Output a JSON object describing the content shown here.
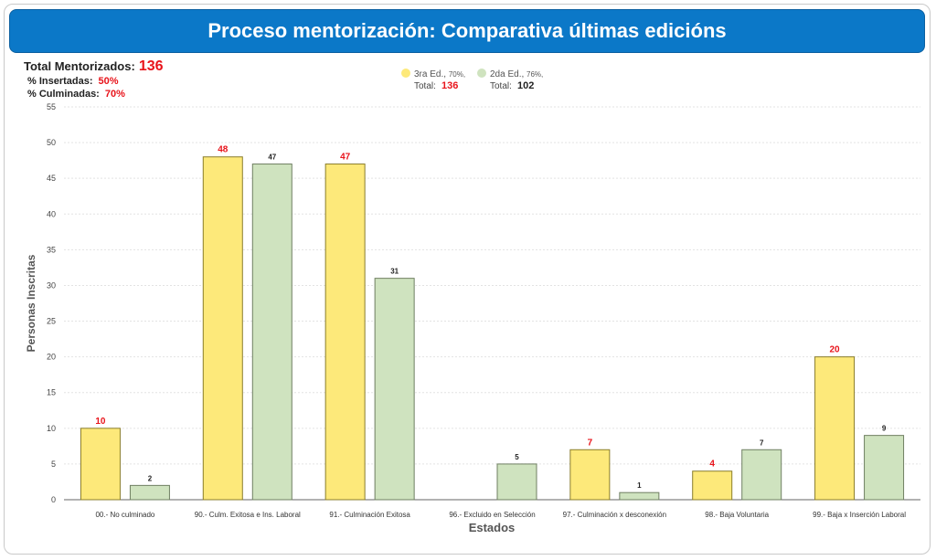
{
  "header": {
    "title": "Proceso mentorización: Comparativa últimas edicións"
  },
  "summary": {
    "total_label": "Total Mentorizados:",
    "total_value": "136",
    "insertadas_label": "% Insertadas:",
    "insertadas_value": "50%",
    "culminadas_label": "% Culminadas:",
    "culminadas_value": "70%"
  },
  "colors": {
    "title_bg": "#0b78c8",
    "series_a_fill": "#fde97a",
    "series_a_stroke": "#8a7d2a",
    "series_b_fill": "#cfe3bf",
    "series_b_stroke": "#6f7f62",
    "label_red": "#e8141b",
    "label_dark": "#222222"
  },
  "chart_data": {
    "type": "bar",
    "categories": [
      "00.- No culminado",
      "90.- Culm. Exitosa e Ins. Laboral",
      "91.- Culminación Exitosa",
      "96.- Excluido en Selección",
      "97.- Culminación x desconexión",
      "98.- Baja Voluntaria",
      "99.- Baja x Inserción Laboral"
    ],
    "series": [
      {
        "name": "3ra Ed.",
        "legend_pct": "70%",
        "legend_total_label": "Total:",
        "legend_total": "136",
        "values": [
          10,
          48,
          47,
          null,
          7,
          4,
          20
        ]
      },
      {
        "name": "2da Ed.",
        "legend_pct": "76%",
        "legend_total_label": "Total:",
        "legend_total": "102",
        "values": [
          2,
          47,
          31,
          5,
          1,
          7,
          9
        ]
      }
    ],
    "xlabel": "Estados",
    "ylabel": "Personas Inscritas",
    "ylim": [
      0,
      55
    ],
    "yticks": [
      0,
      5,
      10,
      15,
      20,
      25,
      30,
      35,
      40,
      45,
      50,
      55
    ],
    "grid": true,
    "legend_position": "top-center"
  }
}
